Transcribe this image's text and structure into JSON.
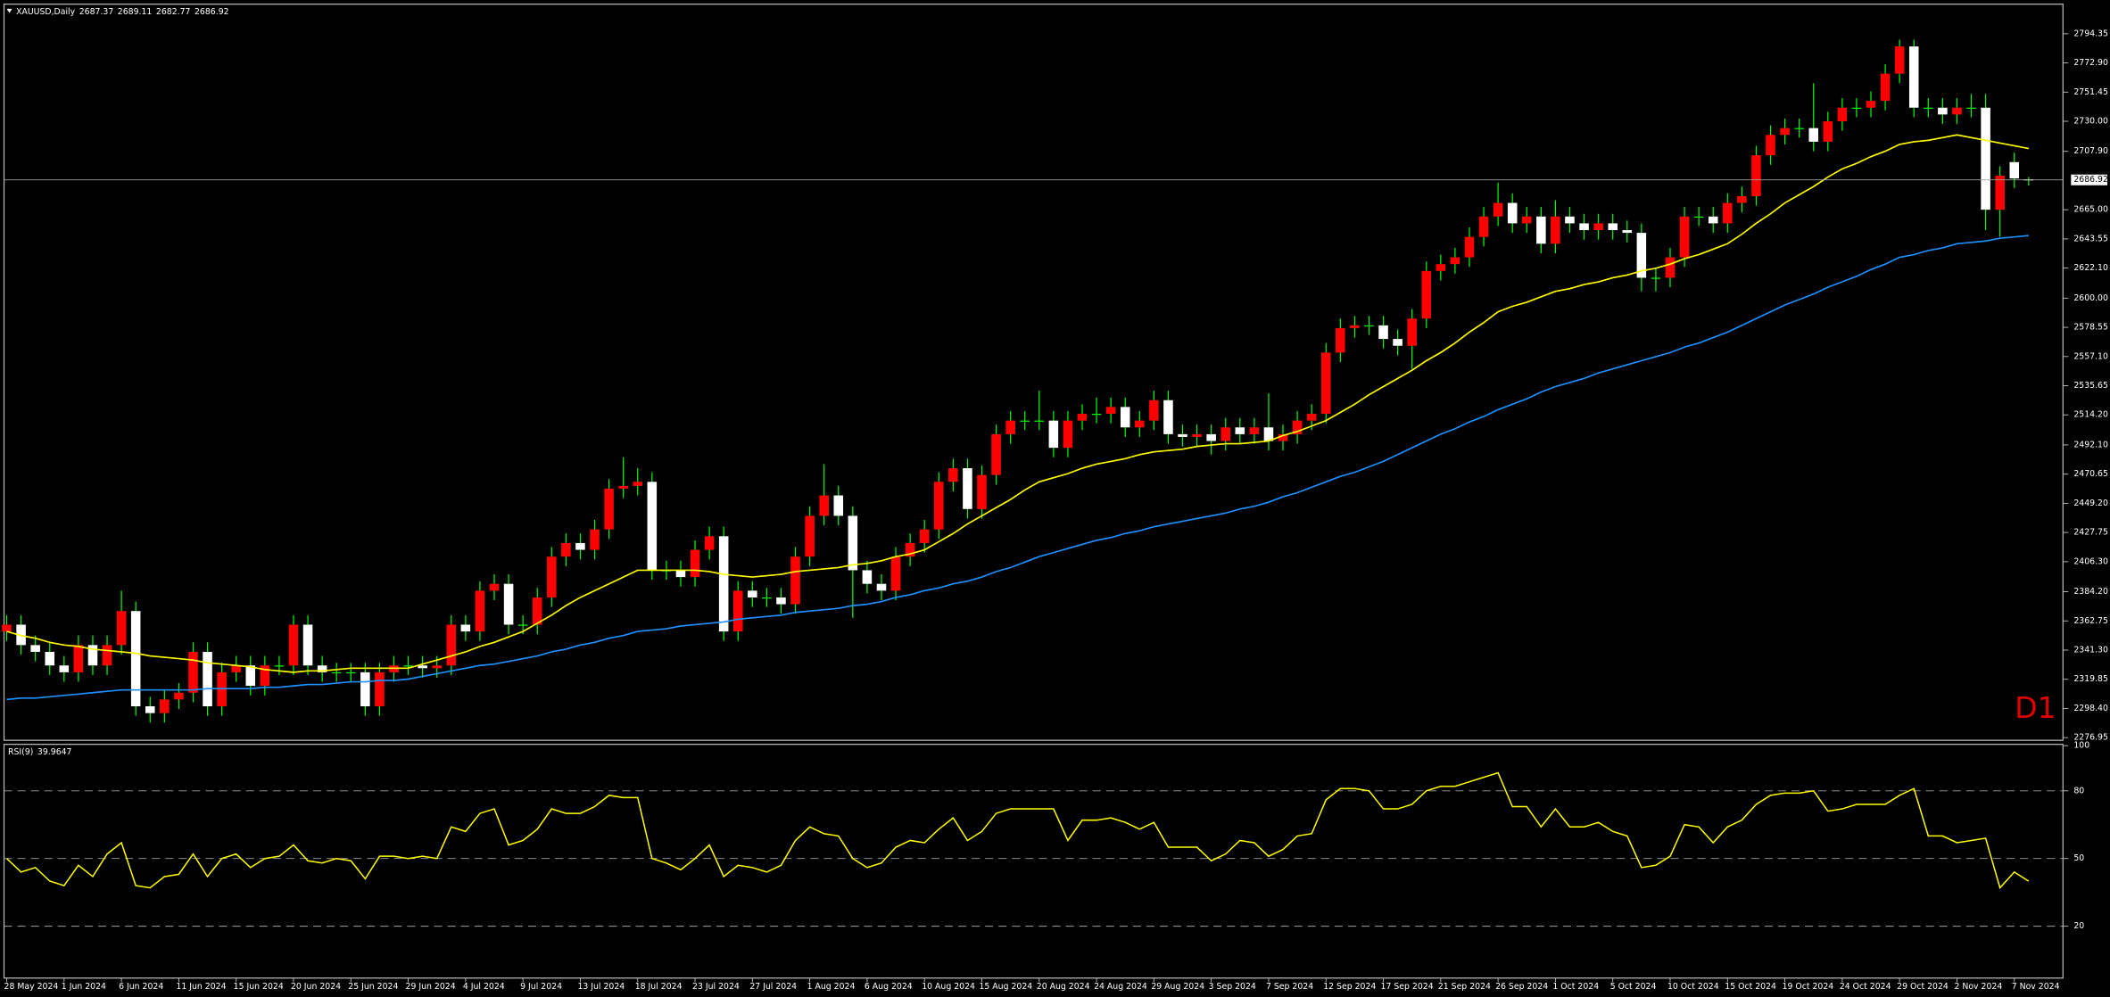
{
  "chart_data": [
    {
      "type": "candlestick",
      "title": "XAUUSD,Daily",
      "badge": "D1",
      "categories": [
        "28 May 2024",
        null,
        null,
        null,
        "1 Jun 2024",
        null,
        null,
        null,
        "6 Jun 2024",
        null,
        null,
        null,
        "11 Jun 2024",
        null,
        null,
        null,
        "15 Jun 2024",
        null,
        null,
        null,
        "20 Jun 2024",
        null,
        null,
        null,
        "25 Jun 2024",
        null,
        null,
        null,
        "29 Jun 2024",
        null,
        null,
        null,
        "4 Jul 2024",
        null,
        null,
        null,
        "9 Jul 2024",
        null,
        null,
        null,
        "13 Jul 2024",
        null,
        null,
        null,
        "18 Jul 2024",
        null,
        null,
        null,
        "23 Jul 2024",
        null,
        null,
        null,
        "27 Jul 2024",
        null,
        null,
        null,
        "1 Aug 2024",
        null,
        null,
        null,
        "6 Aug 2024",
        null,
        null,
        null,
        "10 Aug 2024",
        null,
        null,
        null,
        "15 Aug 2024",
        null,
        null,
        null,
        "20 Aug 2024",
        null,
        null,
        null,
        "24 Aug 2024",
        null,
        null,
        null,
        "29 Aug 2024",
        null,
        null,
        null,
        "3 Sep 2024",
        null,
        null,
        null,
        "7 Sep 2024",
        null,
        null,
        null,
        "12 Sep 2024",
        null,
        null,
        null,
        "17 Sep 2024",
        null,
        null,
        null,
        "21 Sep 2024",
        null,
        null,
        null,
        "26 Sep 2024",
        null,
        null,
        null,
        "1 Oct 2024",
        null,
        null,
        null,
        "5 Oct 2024",
        null,
        null,
        null,
        "10 Oct 2024",
        null,
        null,
        null,
        "15 Oct 2024",
        null,
        null,
        null,
        "19 Oct 2024",
        null,
        null,
        null,
        "24 Oct 2024",
        null,
        null,
        null,
        "29 Oct 2024",
        null,
        null,
        null,
        "2 Nov 2024",
        null,
        null,
        null,
        "7 Nov 2024",
        null
      ],
      "open": [
        2355,
        2360,
        2345,
        2340,
        2330,
        2325,
        2345,
        2330,
        2345,
        2370,
        2300,
        2295,
        2305,
        2310,
        2340,
        2300,
        2325,
        2330,
        2315,
        2330,
        2330,
        2360,
        2330,
        2325,
        2325,
        2325,
        2300,
        2325,
        2330,
        2330,
        2328,
        2330,
        2360,
        2355,
        2385,
        2390,
        2360,
        2360,
        2380,
        2410,
        2420,
        2415,
        2430,
        2460,
        2462,
        2465,
        2400,
        2400,
        2395,
        2415,
        2425,
        2355,
        2385,
        2380,
        2380,
        2375,
        2410,
        2440,
        2455,
        2440,
        2400,
        2390,
        2385,
        2410,
        2420,
        2430,
        2465,
        2475,
        2445,
        2470,
        2500,
        2510,
        2510,
        2510,
        2490,
        2510,
        2515,
        2515,
        2520,
        2505,
        2510,
        2525,
        2500,
        2498,
        2500,
        2495,
        2505,
        2500,
        2505,
        2495,
        2500,
        2510,
        2515,
        2560,
        2578,
        2580,
        2580,
        2570,
        2565,
        2585,
        2620,
        2625,
        2630,
        2645,
        2660,
        2670,
        2655,
        2660,
        2640,
        2660,
        2655,
        2650,
        2655,
        2650,
        2648,
        2615,
        2615,
        2630,
        2660,
        2660,
        2655,
        2670,
        2675,
        2705,
        2720,
        2725,
        2725,
        2715,
        2730,
        2740,
        2740,
        2745,
        2765,
        2785,
        2740,
        2740,
        2735,
        2740,
        2740,
        2665,
        2700,
        2687.37
      ],
      "high": [
        2367,
        2367,
        2352,
        2347,
        2337,
        2352,
        2352,
        2352,
        2385,
        2377,
        2307,
        2312,
        2317,
        2347,
        2347,
        2332,
        2337,
        2337,
        2337,
        2337,
        2367,
        2367,
        2337,
        2332,
        2332,
        2332,
        2332,
        2337,
        2337,
        2337,
        2337,
        2367,
        2367,
        2392,
        2397,
        2397,
        2367,
        2387,
        2417,
        2427,
        2427,
        2437,
        2467,
        2483,
        2475,
        2472,
        2407,
        2407,
        2422,
        2432,
        2432,
        2392,
        2392,
        2387,
        2387,
        2417,
        2447,
        2478,
        2462,
        2447,
        2407,
        2397,
        2417,
        2427,
        2437,
        2472,
        2482,
        2482,
        2477,
        2507,
        2517,
        2517,
        2532,
        2517,
        2517,
        2522,
        2527,
        2527,
        2527,
        2517,
        2532,
        2532,
        2507,
        2507,
        2507,
        2512,
        2512,
        2512,
        2530,
        2507,
        2517,
        2522,
        2567,
        2585,
        2587,
        2587,
        2587,
        2577,
        2592,
        2627,
        2632,
        2637,
        2652,
        2667,
        2685,
        2677,
        2667,
        2667,
        2672,
        2667,
        2662,
        2662,
        2662,
        2657,
        2655,
        2622,
        2637,
        2667,
        2667,
        2667,
        2677,
        2682,
        2712,
        2727,
        2732,
        2732,
        2758,
        2737,
        2747,
        2747,
        2752,
        2772,
        2790,
        2790,
        2747,
        2747,
        2747,
        2750,
        2750,
        2697,
        2707,
        2689.11
      ],
      "low": [
        2348,
        2338,
        2333,
        2323,
        2318,
        2318,
        2323,
        2323,
        2338,
        2293,
        2288,
        2288,
        2298,
        2303,
        2293,
        2293,
        2318,
        2308,
        2308,
        2323,
        2323,
        2323,
        2318,
        2318,
        2318,
        2293,
        2293,
        2318,
        2323,
        2321,
        2321,
        2323,
        2348,
        2348,
        2378,
        2353,
        2353,
        2353,
        2373,
        2403,
        2408,
        2408,
        2423,
        2453,
        2455,
        2393,
        2393,
        2388,
        2388,
        2408,
        2348,
        2348,
        2373,
        2373,
        2368,
        2368,
        2403,
        2433,
        2433,
        2365,
        2383,
        2378,
        2378,
        2403,
        2413,
        2423,
        2458,
        2438,
        2438,
        2463,
        2493,
        2503,
        2503,
        2483,
        2483,
        2503,
        2508,
        2508,
        2498,
        2498,
        2503,
        2493,
        2491,
        2491,
        2485,
        2488,
        2493,
        2493,
        2488,
        2488,
        2493,
        2503,
        2508,
        2553,
        2571,
        2573,
        2563,
        2558,
        2548,
        2578,
        2613,
        2618,
        2623,
        2638,
        2653,
        2648,
        2648,
        2633,
        2633,
        2648,
        2643,
        2643,
        2643,
        2641,
        2605,
        2605,
        2608,
        2623,
        2653,
        2648,
        2648,
        2663,
        2668,
        2698,
        2713,
        2718,
        2708,
        2708,
        2723,
        2733,
        2733,
        2738,
        2758,
        2733,
        2733,
        2728,
        2728,
        2733,
        2650,
        2645,
        2681,
        2682.77
      ],
      "close": [
        2360,
        2345,
        2340,
        2330,
        2325,
        2345,
        2330,
        2345,
        2370,
        2300,
        2295,
        2305,
        2310,
        2340,
        2300,
        2325,
        2330,
        2315,
        2330,
        2330,
        2360,
        2330,
        2325,
        2325,
        2325,
        2300,
        2325,
        2330,
        2330,
        2328,
        2330,
        2360,
        2355,
        2385,
        2390,
        2360,
        2360,
        2380,
        2410,
        2420,
        2415,
        2430,
        2460,
        2462,
        2465,
        2400,
        2400,
        2395,
        2415,
        2425,
        2355,
        2385,
        2380,
        2380,
        2375,
        2410,
        2440,
        2455,
        2440,
        2400,
        2390,
        2385,
        2410,
        2420,
        2430,
        2465,
        2475,
        2445,
        2470,
        2500,
        2510,
        2510,
        2510,
        2490,
        2510,
        2515,
        2515,
        2520,
        2505,
        2510,
        2525,
        2500,
        2498,
        2500,
        2495,
        2505,
        2500,
        2505,
        2495,
        2500,
        2510,
        2515,
        2560,
        2578,
        2580,
        2580,
        2570,
        2565,
        2585,
        2620,
        2625,
        2630,
        2645,
        2660,
        2670,
        2655,
        2660,
        2640,
        2660,
        2655,
        2650,
        2655,
        2650,
        2648,
        2615,
        2615,
        2630,
        2660,
        2660,
        2655,
        2670,
        2675,
        2705,
        2720,
        2725,
        2725,
        2715,
        2730,
        2740,
        2740,
        2745,
        2765,
        2785,
        2740,
        2740,
        2735,
        2740,
        2740,
        2665,
        2690,
        2688,
        2686.92
      ],
      "lines": [
        {
          "color": "#ffff00",
          "values": [
            2355,
            2352,
            2350,
            2347,
            2345,
            2344,
            2342,
            2341,
            2340,
            2339,
            2337,
            2336,
            2335,
            2334,
            2332,
            2331,
            2330,
            2329,
            2327,
            2326,
            2325,
            2326,
            2326,
            2327,
            2328,
            2328,
            2328,
            2328,
            2328,
            2331,
            2334,
            2337,
            2340,
            2344,
            2347,
            2351,
            2355,
            2361,
            2367,
            2374,
            2380,
            2385,
            2390,
            2395,
            2400,
            2400,
            2400,
            2400,
            2400,
            2399,
            2397,
            2396,
            2395,
            2396,
            2397,
            2399,
            2400,
            2401,
            2402,
            2404,
            2405,
            2407,
            2410,
            2412,
            2415,
            2421,
            2427,
            2434,
            2440,
            2446,
            2452,
            2459,
            2465,
            2468,
            2471,
            2475,
            2478,
            2480,
            2482,
            2485,
            2487,
            2488,
            2489,
            2491,
            2492,
            2493,
            2493,
            2494,
            2495,
            2499,
            2502,
            2506,
            2510,
            2516,
            2522,
            2529,
            2535,
            2541,
            2547,
            2554,
            2560,
            2567,
            2575,
            2582,
            2590,
            2594,
            2597,
            2601,
            2605,
            2607,
            2610,
            2612,
            2615,
            2617,
            2620,
            2622,
            2625,
            2629,
            2632,
            2636,
            2640,
            2647,
            2655,
            2662,
            2670,
            2676,
            2682,
            2689,
            2695,
            2699,
            2704,
            2708,
            2713,
            2715,
            2716,
            2718,
            2720,
            2718,
            2716,
            2714,
            2712,
            2710
          ]
        },
        {
          "color": "#1e90ff",
          "values": [
            2305,
            2306,
            2306,
            2307,
            2308,
            2309,
            2310,
            2311,
            2312,
            2312,
            2312,
            2312,
            2312,
            2312,
            2313,
            2313,
            2313,
            2313,
            2314,
            2314,
            2315,
            2316,
            2316,
            2317,
            2318,
            2318,
            2319,
            2319,
            2320,
            2322,
            2324,
            2326,
            2328,
            2330,
            2331,
            2333,
            2335,
            2337,
            2340,
            2342,
            2345,
            2347,
            2350,
            2352,
            2355,
            2356,
            2357,
            2359,
            2360,
            2361,
            2362,
            2364,
            2365,
            2366,
            2367,
            2369,
            2370,
            2371,
            2372,
            2374,
            2375,
            2377,
            2380,
            2382,
            2385,
            2387,
            2390,
            2392,
            2395,
            2399,
            2402,
            2406,
            2410,
            2413,
            2416,
            2419,
            2422,
            2424,
            2427,
            2429,
            2432,
            2434,
            2436,
            2438,
            2440,
            2442,
            2445,
            2447,
            2450,
            2454,
            2457,
            2461,
            2465,
            2469,
            2472,
            2476,
            2480,
            2485,
            2490,
            2495,
            2500,
            2504,
            2509,
            2513,
            2518,
            2522,
            2526,
            2531,
            2535,
            2538,
            2541,
            2545,
            2548,
            2551,
            2554,
            2557,
            2560,
            2564,
            2567,
            2571,
            2575,
            2580,
            2585,
            2590,
            2595,
            2599,
            2603,
            2608,
            2612,
            2616,
            2621,
            2625,
            2630,
            2632,
            2635,
            2637,
            2640,
            2641,
            2642,
            2644,
            2645,
            2646
          ]
        }
      ],
      "bull_color": "#ff0000",
      "bear_color": "#ffffff",
      "wick_color": "#00ff00",
      "ylim": [
        2275,
        2816.1
      ],
      "yticks": [
        2794.35,
        {
          "value": 2772.9,
          "label": "2772.90"
        },
        2751.45,
        {
          "value": 2730,
          "label": "2730.00"
        },
        {
          "value": 2707.9,
          "label": "2707.90"
        },
        {
          "value": 2665,
          "label": "2665.00"
        },
        2643.55,
        {
          "value": 2622.1,
          "label": "2622.10"
        },
        {
          "value": 2600,
          "label": "2600.00"
        },
        2578.55,
        {
          "value": 2557.1,
          "label": "2557.10"
        },
        2535.65,
        {
          "value": 2514.2,
          "label": "2514.20"
        },
        {
          "value": 2492.1,
          "label": "2492.10"
        },
        2470.65,
        {
          "value": 2449.2,
          "label": "2449.20"
        },
        2427.75,
        {
          "value": 2406.3,
          "label": "2406.30"
        },
        {
          "value": 2384.2,
          "label": "2384.20"
        },
        2362.75,
        {
          "value": 2341.3,
          "label": "2341.30"
        },
        2319.85,
        {
          "value": 2298.4,
          "label": "2298.40"
        },
        2276.95
      ]
    },
    {
      "type": "line",
      "title": "RSI(9)",
      "color": "#ffff00",
      "values": [
        50,
        44,
        46,
        40,
        38,
        47,
        42,
        52,
        57,
        38,
        37,
        42,
        43,
        52,
        42,
        50,
        52,
        46,
        50,
        51,
        56,
        49,
        48,
        50,
        49,
        41,
        51,
        51,
        50,
        51,
        50,
        64,
        62,
        70,
        72,
        56,
        58,
        63,
        72,
        70,
        70,
        73,
        78,
        77,
        77,
        50,
        48,
        45,
        50,
        56,
        42,
        47,
        46,
        44,
        47,
        58,
        64,
        61,
        60,
        50,
        46,
        48,
        55,
        58,
        57,
        63,
        68,
        58,
        62,
        70,
        72,
        72,
        72,
        72,
        58,
        67,
        67,
        68,
        66,
        63,
        66,
        55,
        55,
        55,
        49,
        52,
        58,
        57,
        51,
        54,
        60,
        61,
        76,
        81,
        81,
        80,
        72,
        72,
        74,
        80,
        82,
        82,
        84,
        86,
        88,
        73,
        73,
        64,
        72,
        64,
        64,
        66,
        62,
        60,
        46,
        47,
        51,
        65,
        64,
        57,
        64,
        67,
        74,
        78,
        79,
        79,
        80,
        71,
        72,
        74,
        74,
        74,
        78,
        81,
        60,
        60,
        57,
        58,
        59,
        37,
        44,
        39.9647
      ],
      "ylim": [
        0,
        100
      ],
      "yticks": [
        20,
        50,
        80,
        100
      ]
    }
  ]
}
